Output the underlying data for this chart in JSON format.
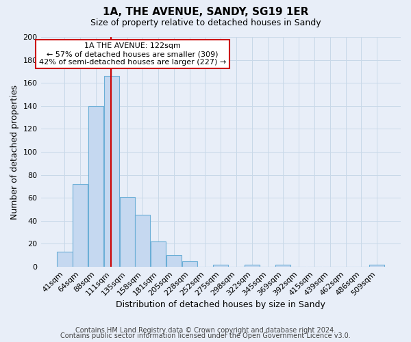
{
  "title": "1A, THE AVENUE, SANDY, SG19 1ER",
  "subtitle": "Size of property relative to detached houses in Sandy",
  "xlabel": "Distribution of detached houses by size in Sandy",
  "ylabel": "Number of detached properties",
  "footnote1": "Contains HM Land Registry data © Crown copyright and database right 2024.",
  "footnote2": "Contains public sector information licensed under the Open Government Licence v3.0.",
  "bar_labels": [
    "41sqm",
    "64sqm",
    "88sqm",
    "111sqm",
    "135sqm",
    "158sqm",
    "181sqm",
    "205sqm",
    "228sqm",
    "252sqm",
    "275sqm",
    "298sqm",
    "322sqm",
    "345sqm",
    "369sqm",
    "392sqm",
    "415sqm",
    "439sqm",
    "462sqm",
    "486sqm",
    "509sqm"
  ],
  "bar_values": [
    13,
    72,
    140,
    166,
    61,
    45,
    22,
    10,
    5,
    0,
    2,
    0,
    2,
    0,
    2,
    0,
    0,
    0,
    0,
    0,
    2
  ],
  "bar_color": "#c5d8f0",
  "bar_edge_color": "#6aaed6",
  "annotation_title": "1A THE AVENUE: 122sqm",
  "annotation_line1": "← 57% of detached houses are smaller (309)",
  "annotation_line2": "42% of semi-detached houses are larger (227) →",
  "annotation_box_color": "#ffffff",
  "annotation_box_edge": "#cc0000",
  "vline_color": "#cc0000",
  "ylim": [
    0,
    200
  ],
  "yticks": [
    0,
    20,
    40,
    60,
    80,
    100,
    120,
    140,
    160,
    180,
    200
  ],
  "grid_color": "#c8d8e8",
  "bg_color": "#e8eef8",
  "title_fontsize": 11,
  "subtitle_fontsize": 9,
  "axis_label_fontsize": 9,
  "tick_fontsize": 8,
  "annotation_fontsize": 8,
  "footnote_fontsize": 7
}
